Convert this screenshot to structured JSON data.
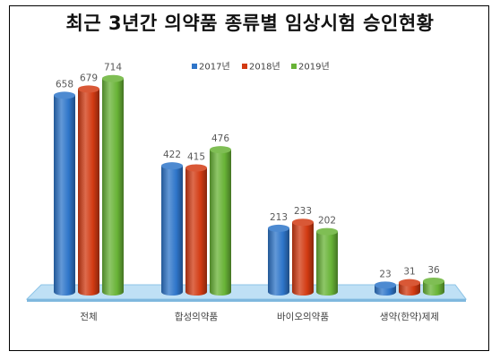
{
  "chart_data": {
    "type": "bar",
    "title": "최근 3년간 의약품 종류별 임상시험 승인현황",
    "categories": [
      "전체",
      "합성의약품",
      "바이오의약품",
      "생약(한약)제제"
    ],
    "series": [
      {
        "name": "2017년",
        "values": [
          658,
          422,
          213,
          23
        ],
        "color": "#2e75c9"
      },
      {
        "name": "2018년",
        "values": [
          679,
          415,
          233,
          31
        ],
        "color": "#d23a12"
      },
      {
        "name": "2019년",
        "values": [
          714,
          476,
          202,
          36
        ],
        "color": "#68b336"
      }
    ],
    "ylim": [
      0,
      800
    ],
    "legend": "top",
    "grid": false
  }
}
